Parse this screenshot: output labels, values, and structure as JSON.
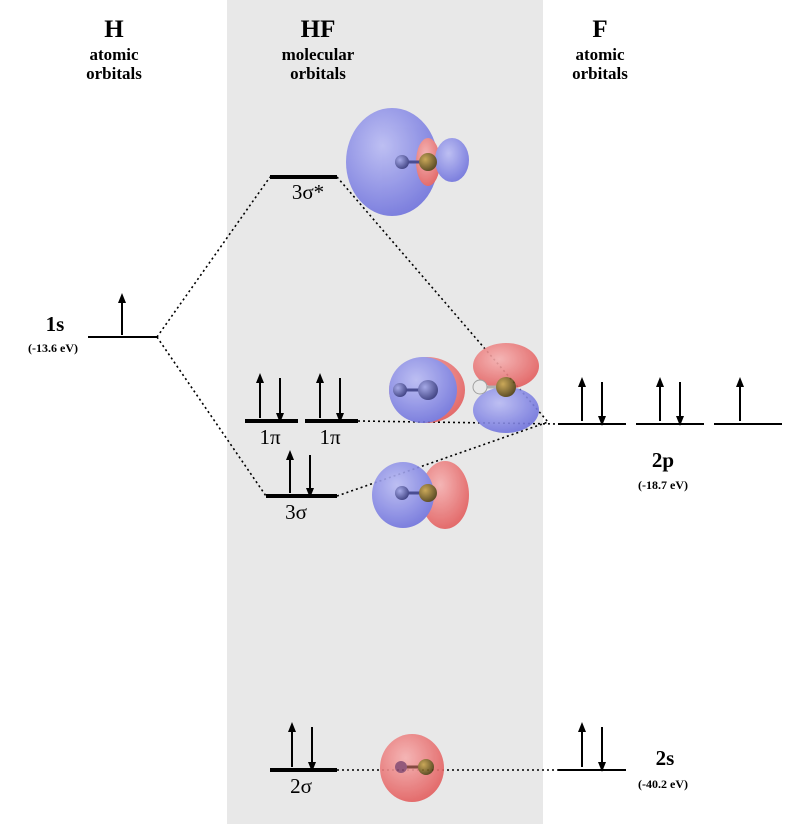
{
  "headers": {
    "h": {
      "symbol": "H",
      "line1": "atomic",
      "line2": "orbitals"
    },
    "hf": {
      "symbol": "HF",
      "line1": "molecular",
      "line2": "orbitals"
    },
    "f": {
      "symbol": "F",
      "line1": "atomic",
      "line2": "orbitals"
    }
  },
  "h_orbital": {
    "name": "1s",
    "energy": "(-13.6 eV)"
  },
  "mo": {
    "antibonding": {
      "name": "3σ*"
    },
    "pi1": {
      "name": "1π"
    },
    "pi2": {
      "name": "1π"
    },
    "bonding": {
      "name": "3σ"
    },
    "s": {
      "name": "2σ"
    }
  },
  "f_orbitals": {
    "p": {
      "name": "2p",
      "energy": "(-18.7 eV)"
    },
    "s": {
      "name": "2s",
      "energy": "(-40.2 eV)"
    }
  },
  "colors": {
    "panel": "#e8e8e8",
    "lobe_blue": "#7b7ee6",
    "lobe_red": "#ec6a6a"
  }
}
